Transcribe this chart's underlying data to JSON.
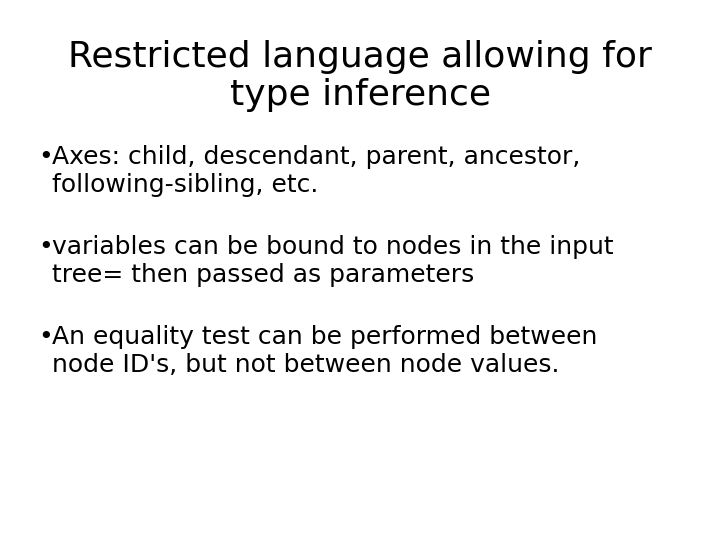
{
  "title_line1": "Restricted language allowing for",
  "title_line2": "type inference",
  "bullet1_line1": "Axes: child, descendant, parent, ancestor,",
  "bullet1_line2": "following-sibling, etc.",
  "bullet2_line1": "variables can be bound to nodes in the input",
  "bullet2_line2": "tree= then passed as parameters",
  "bullet3_line1": "An equality test can be performed between",
  "bullet3_line2": "node ID's, but not between node values.",
  "background_color": "#ffffff",
  "text_color": "#000000",
  "title_fontsize": 26,
  "bullet_fontsize": 18,
  "font_family": "DejaVu Sans"
}
